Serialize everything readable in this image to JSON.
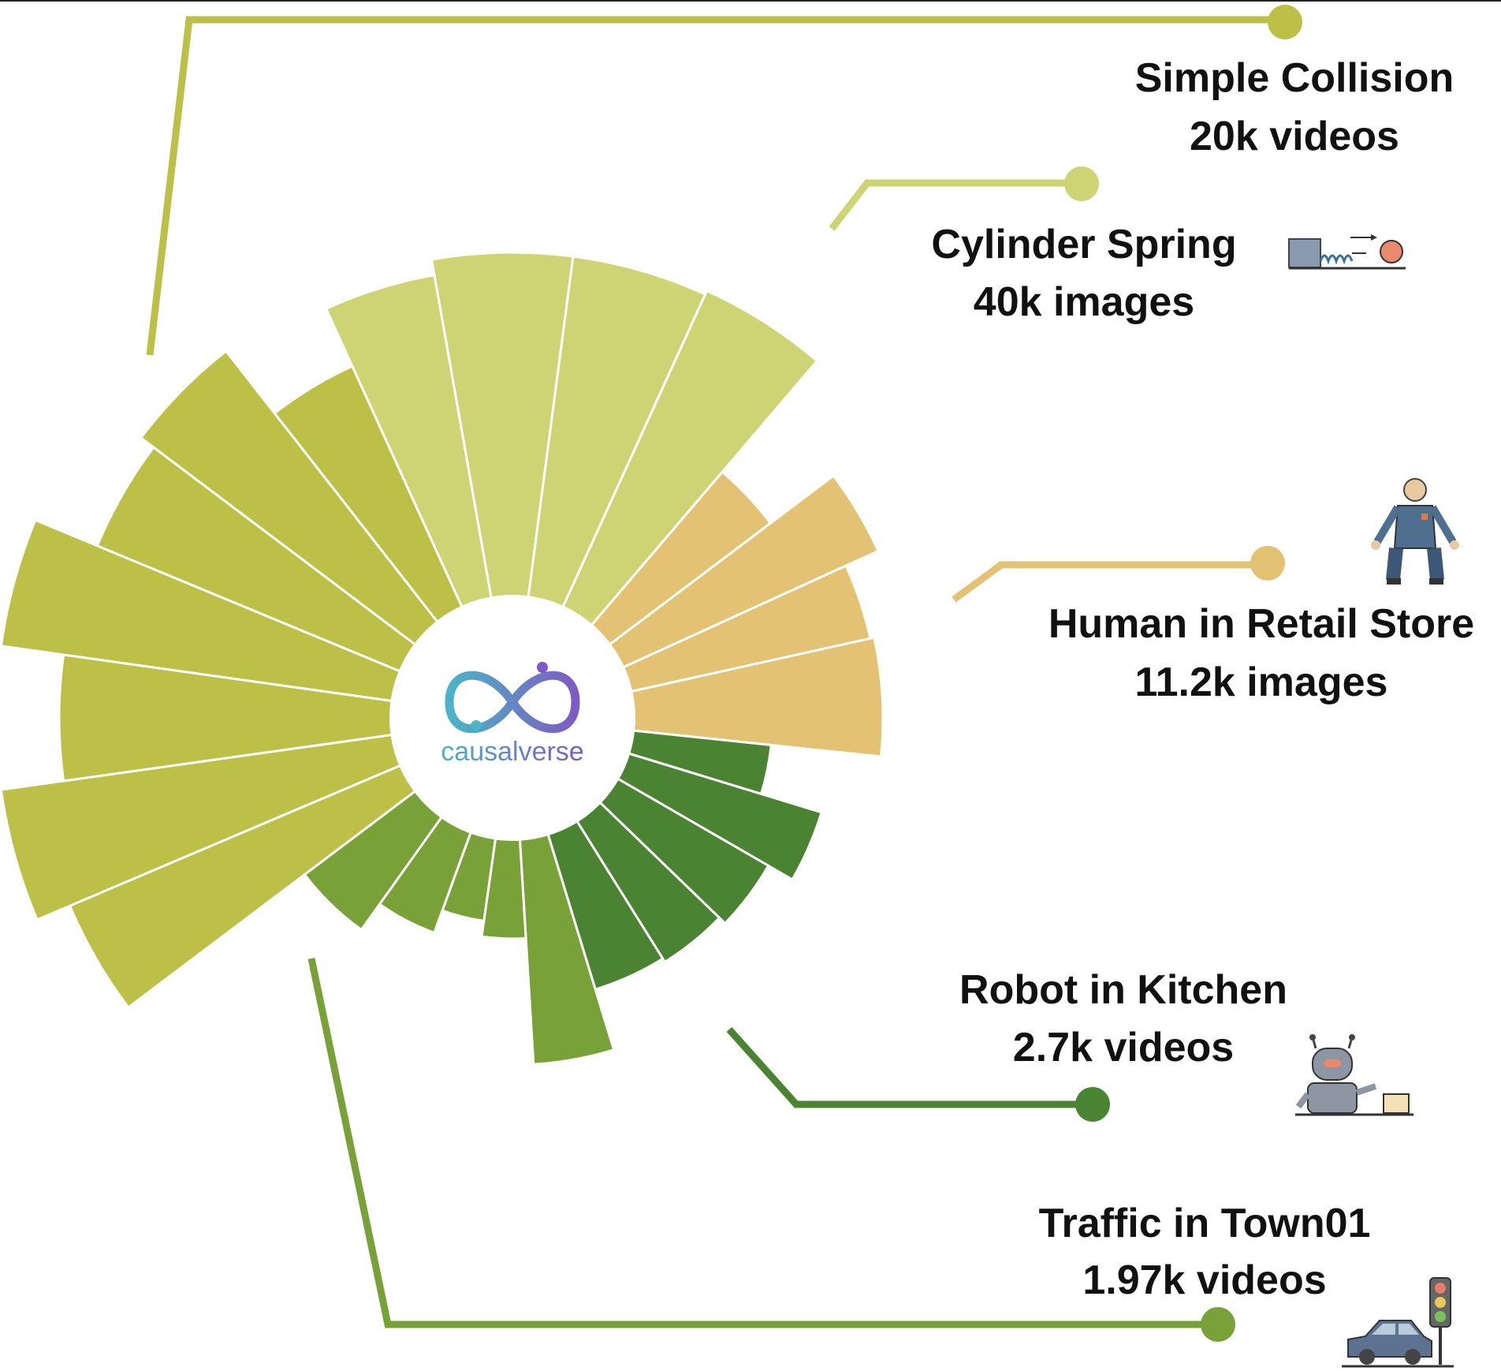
{
  "center": {
    "logo_text": "causalverse",
    "logo_icon": "infinity-loop-icon"
  },
  "colors": {
    "simple_collision": "#BCC046",
    "cylinder_spring": "#CED474",
    "human_retail": "#E4C273",
    "robot_kitchen": "#4A8331",
    "traffic_town": "#78A238"
  },
  "datasets": [
    {
      "key": "simple_collision",
      "name": "Simple Collision",
      "size": "20k videos",
      "icon": "",
      "color": "#BCC046",
      "label_anchor": [
        1642,
        100
      ],
      "dot": [
        1630,
        30
      ]
    },
    {
      "key": "cylinder_spring",
      "name": "Cylinder Spring",
      "size": "40k images",
      "icon": "spring-launch-icon",
      "color": "#CED474",
      "label_anchor": [
        1375,
        310
      ],
      "dot": [
        1372,
        233
      ]
    },
    {
      "key": "human_retail",
      "name": "Human in Retail Store",
      "size": "11.2k images",
      "icon": "worker-figure-icon",
      "color": "#E4C273",
      "label_anchor": [
        1600,
        790
      ],
      "dot": [
        1605,
        713
      ]
    },
    {
      "key": "robot_kitchen",
      "name": "Robot in Kitchen",
      "size": "2.7k videos",
      "icon": "kitchen-robot-icon",
      "color": "#4A8331",
      "label_anchor": [
        1424,
        1255
      ],
      "dot": [
        1386,
        1400
      ]
    },
    {
      "key": "traffic_town",
      "name": "Traffic in Town01",
      "size": "1.97k videos",
      "icon": "car-traffic-light-icon",
      "color": "#78A238",
      "label_anchor": [
        1528,
        1550
      ],
      "dot": [
        1545,
        1678
      ]
    }
  ]
}
